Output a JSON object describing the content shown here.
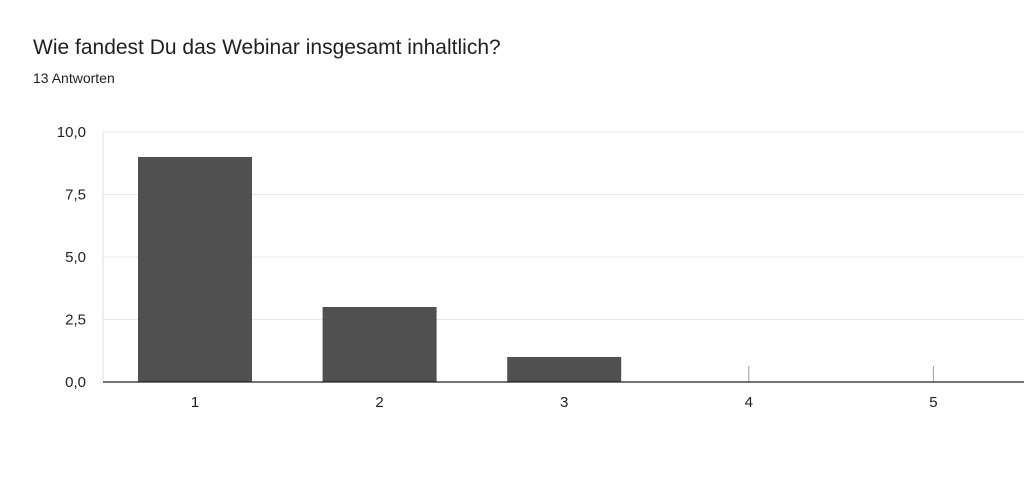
{
  "title": "Wie fandest Du das Webinar insgesamt inhaltlich?",
  "subtitle": "13 Antworten",
  "chart_data": {
    "type": "bar",
    "title": "Wie fandest Du das Webinar insgesamt inhaltlich?",
    "subtitle": "13 Antworten",
    "categories": [
      "1",
      "2",
      "3",
      "4",
      "5"
    ],
    "values": [
      9,
      3,
      1,
      0,
      0
    ],
    "ylim": [
      0,
      10
    ],
    "yticks": [
      "0,0",
      "2,5",
      "5,0",
      "7,5",
      "10,0"
    ],
    "grid": true,
    "legend": "none",
    "bar_color": "#505050",
    "gridline_color": "#e8e8e8",
    "axis_color": "#202124"
  }
}
